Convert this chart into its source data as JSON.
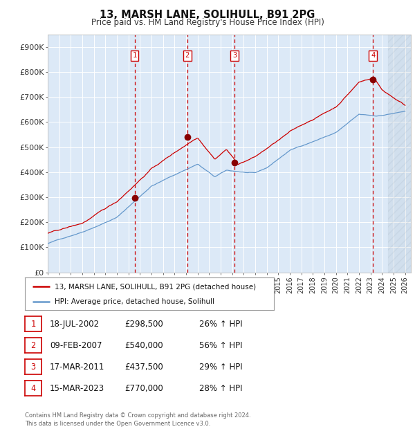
{
  "title1": "13, MARSH LANE, SOLIHULL, B91 2PG",
  "title2": "Price paid vs. HM Land Registry's House Price Index (HPI)",
  "ylim": [
    0,
    950000
  ],
  "xlim_start": 1995.0,
  "xlim_end": 2026.5,
  "plot_bg": "#dce9f7",
  "grid_color": "#ffffff",
  "sale_dates": [
    2002.54,
    2007.11,
    2011.21,
    2023.21
  ],
  "sale_prices": [
    298500,
    540000,
    437500,
    770000
  ],
  "sale_labels": [
    "1",
    "2",
    "3",
    "4"
  ],
  "sale_info": [
    {
      "num": "1",
      "date": "18-JUL-2002",
      "price": "£298,500",
      "change": "26% ↑ HPI"
    },
    {
      "num": "2",
      "date": "09-FEB-2007",
      "price": "£540,000",
      "change": "56% ↑ HPI"
    },
    {
      "num": "3",
      "date": "17-MAR-2011",
      "price": "£437,500",
      "change": "29% ↑ HPI"
    },
    {
      "num": "4",
      "date": "15-MAR-2023",
      "price": "£770,000",
      "change": "28% ↑ HPI"
    }
  ],
  "legend_line1": "13, MARSH LANE, SOLIHULL, B91 2PG (detached house)",
  "legend_line2": "HPI: Average price, detached house, Solihull",
  "footer": "Contains HM Land Registry data © Crown copyright and database right 2024.\nThis data is licensed under the Open Government Licence v3.0.",
  "hpi_color": "#6699cc",
  "price_color": "#cc0000",
  "marker_color": "#880000",
  "dashed_color": "#cc0000",
  "box_color": "#cc0000",
  "yticks": [
    0,
    100000,
    200000,
    300000,
    400000,
    500000,
    600000,
    700000,
    800000,
    900000
  ],
  "ytick_labels": [
    "£0",
    "£100K",
    "£200K",
    "£300K",
    "£400K",
    "£500K",
    "£600K",
    "£700K",
    "£800K",
    "£900K"
  ]
}
